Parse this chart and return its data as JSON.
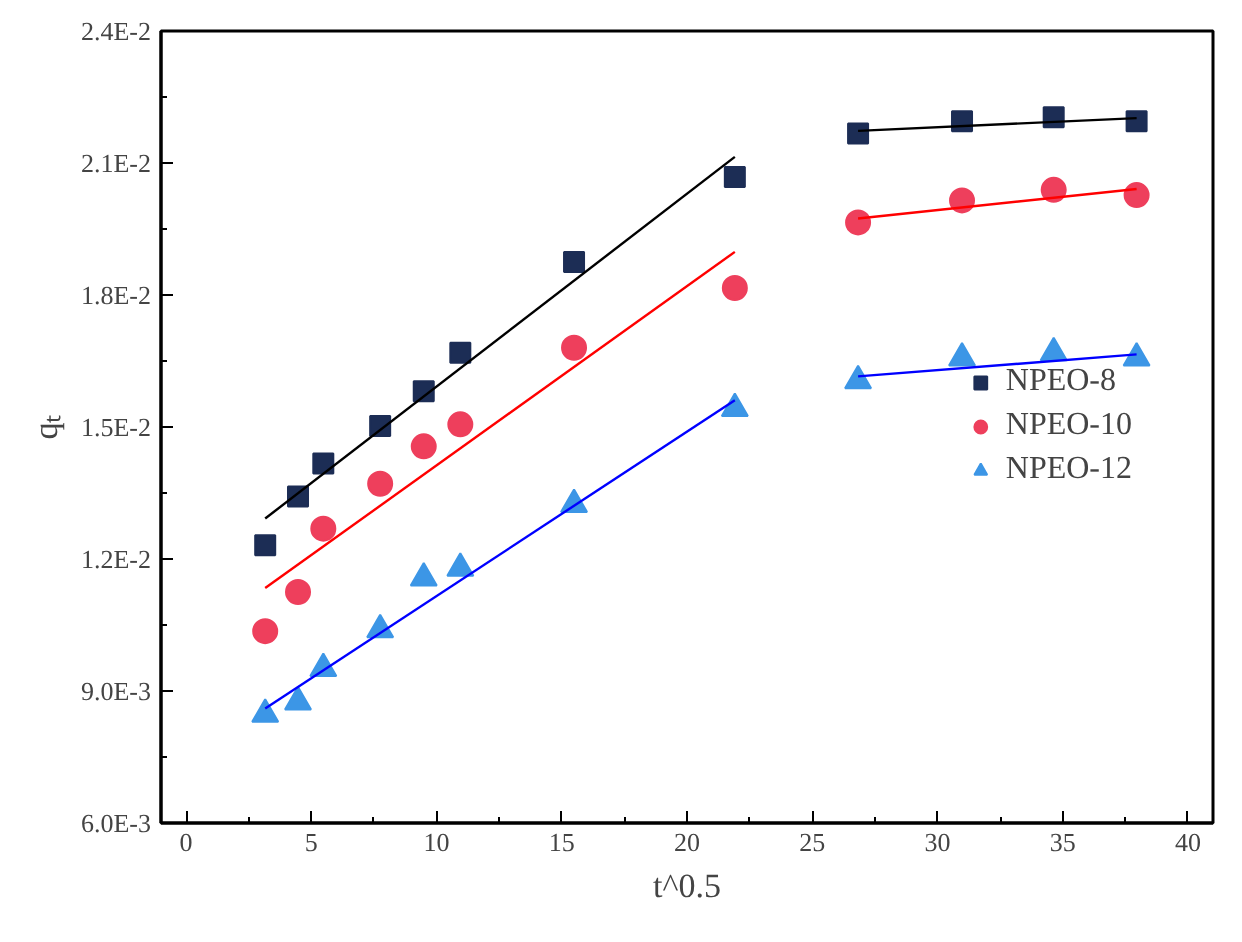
{
  "chart_data": {
    "type": "scatter",
    "xlabel": "t^0.5",
    "ylabel": "qₜ",
    "xlim": [
      -1,
      41
    ],
    "xticks": [
      0,
      5,
      10,
      15,
      20,
      25,
      30,
      35,
      40
    ],
    "ylim": [
      0.006,
      0.024
    ],
    "yticks": [
      {
        "value": 0.006,
        "label": "6.0E-3"
      },
      {
        "value": 0.009,
        "label": "9.0E-3"
      },
      {
        "value": 0.012,
        "label": "1.2E-2"
      },
      {
        "value": 0.015,
        "label": "1.5E-2"
      },
      {
        "value": 0.018,
        "label": "1.8E-2"
      },
      {
        "value": 0.021,
        "label": "2.1E-2"
      },
      {
        "value": 0.024,
        "label": "2.4E-2"
      }
    ],
    "x": [
      3.16,
      4.47,
      5.48,
      7.75,
      9.49,
      10.95,
      15.49,
      21.91,
      26.83,
      30.98,
      34.64,
      37.95
    ],
    "series": [
      {
        "name": "NPEO-8",
        "type": "scatter",
        "marker": "square",
        "color": "#1c2d55",
        "values": [
          0.01231,
          0.01342,
          0.01417,
          0.01502,
          0.01581,
          0.01669,
          0.01875,
          0.02068,
          0.02167,
          0.02195,
          0.02204,
          0.02195
        ]
      },
      {
        "name": "NPEO-10",
        "type": "scatter",
        "marker": "circle",
        "color": "#ee3f5c",
        "values": [
          0.01036,
          0.01125,
          0.01269,
          0.01371,
          0.01456,
          0.01506,
          0.0168,
          0.01816,
          0.01965,
          0.02015,
          0.02039,
          0.02027
        ]
      },
      {
        "name": "NPEO-12",
        "type": "scatter",
        "marker": "triangle",
        "color": "#3c96e6",
        "values": [
          0.00847,
          0.00875,
          0.00951,
          0.01039,
          0.01157,
          0.01179,
          0.01324,
          0.01542,
          0.01605,
          0.01657,
          0.01669,
          0.01657
        ]
      },
      {
        "type": "line",
        "color": "#000000",
        "x": [
          3.16,
          21.91
        ],
        "values": [
          0.01292,
          0.02114
        ]
      },
      {
        "type": "line",
        "color": "#000000",
        "x": [
          26.83,
          37.95
        ],
        "values": [
          0.02173,
          0.02202
        ]
      },
      {
        "type": "line",
        "color": "#ff0000",
        "x": [
          3.16,
          21.91
        ],
        "values": [
          0.01134,
          0.01898
        ]
      },
      {
        "type": "line",
        "color": "#ff0000",
        "x": [
          26.83,
          37.95
        ],
        "values": [
          0.01974,
          0.02041
        ]
      },
      {
        "type": "line",
        "color": "#0000ff",
        "x": [
          3.16,
          21.91
        ],
        "values": [
          0.0086,
          0.01561
        ]
      },
      {
        "type": "line",
        "color": "#0000ff",
        "x": [
          26.83,
          37.95
        ],
        "values": [
          0.01615,
          0.01665
        ]
      }
    ],
    "grid": false,
    "legend": "right"
  }
}
